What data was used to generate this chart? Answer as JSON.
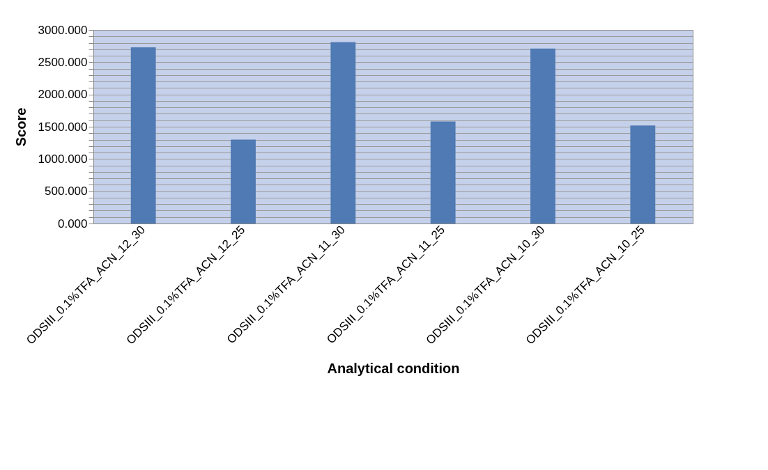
{
  "chart_data": {
    "type": "bar",
    "xlabel": "Analytical condition",
    "ylabel": "Score",
    "categories": [
      "ODSIII_0.1%TFA_ACN_12_30",
      "ODSIII_0.1%TFA_ACN_12_25",
      "ODSIII_0.1%TFA_ACN_11_30",
      "ODSIII_0.1%TFA_ACN_11_25",
      "ODSIII_0.1%TFA_ACN_10_30",
      "ODSIII_0.1%TFA_ACN_10_25"
    ],
    "values": [
      2730,
      1300,
      2810,
      1580,
      2710,
      1520
    ],
    "color": "#4f7ab3",
    "ylim": [
      0,
      3000
    ],
    "yticks": [
      {
        "value": 0,
        "label": "0.000"
      },
      {
        "value": 100,
        "label": null
      },
      {
        "value": 200,
        "label": null
      },
      {
        "value": 300,
        "label": null
      },
      {
        "value": 400,
        "label": null
      },
      {
        "value": 500,
        "label": "500.000"
      },
      {
        "value": 600,
        "label": null
      },
      {
        "value": 700,
        "label": null
      },
      {
        "value": 800,
        "label": null
      },
      {
        "value": 900,
        "label": null
      },
      {
        "value": 1000,
        "label": "1000.000"
      },
      {
        "value": 1100,
        "label": null
      },
      {
        "value": 1200,
        "label": null
      },
      {
        "value": 1300,
        "label": null
      },
      {
        "value": 1400,
        "label": null
      },
      {
        "value": 1500,
        "label": "1500.000"
      },
      {
        "value": 1600,
        "label": null
      },
      {
        "value": 1700,
        "label": null
      },
      {
        "value": 1800,
        "label": null
      },
      {
        "value": 1900,
        "label": null
      },
      {
        "value": 2000,
        "label": "2000.000"
      },
      {
        "value": 2100,
        "label": null
      },
      {
        "value": 2200,
        "label": null
      },
      {
        "value": 2300,
        "label": null
      },
      {
        "value": 2400,
        "label": null
      },
      {
        "value": 2500,
        "label": "2500.000"
      },
      {
        "value": 2600,
        "label": null
      },
      {
        "value": 2700,
        "label": null
      },
      {
        "value": 2800,
        "label": null
      },
      {
        "value": 2900,
        "label": null
      },
      {
        "value": 3000,
        "label": "3000.000"
      }
    ],
    "grid": true
  }
}
